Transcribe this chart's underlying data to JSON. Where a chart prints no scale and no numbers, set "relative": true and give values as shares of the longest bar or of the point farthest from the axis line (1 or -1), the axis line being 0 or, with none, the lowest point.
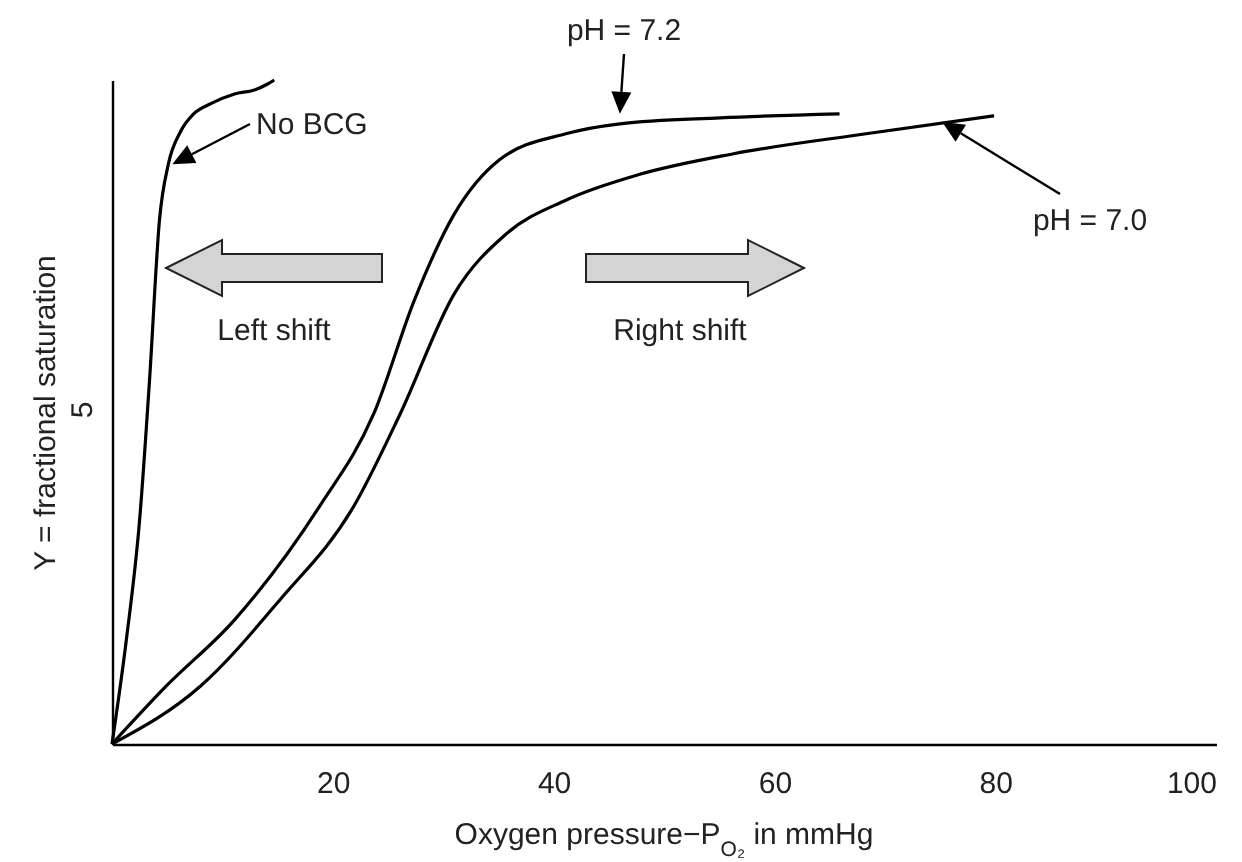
{
  "chart_data": {
    "type": "line",
    "relative": true,
    "xlabel": "Oxygen pressure−P$_{O₂}$ in mmHg",
    "ylabel": "Y = fractional saturation",
    "xlim": [
      0,
      100
    ],
    "xticks": [
      20,
      40,
      60,
      80,
      100
    ],
    "x": [
      0,
      1.3,
      2.5,
      3.4,
      4.3,
      5.1,
      6.2,
      7.4,
      8.9,
      11.1,
      12.9,
      14.1,
      14.7
    ],
    "series": [
      {
        "name": "No BCG",
        "color": "#000000",
        "values": [
          0,
          0.157,
          0.337,
          0.548,
          0.789,
          0.873,
          0.922,
          0.949,
          0.964,
          0.979,
          0.985,
          0.994,
          1.0
        ]
      },
      {
        "name": "pH = 7.2",
        "color": "#000000",
        "x": [
          0,
          4.9,
          11.1,
          18.8,
          23.7,
          27.4,
          31.0,
          35.1,
          41.1,
          46.0,
          55.1,
          65.9
        ],
        "values": [
          0,
          0.087,
          0.187,
          0.358,
          0.497,
          0.669,
          0.798,
          0.88,
          0.919,
          0.934,
          0.943,
          0.949
        ]
      },
      {
        "name": "pH = 7.0",
        "color": "#000000",
        "x": [
          0,
          8.0,
          15.2,
          21.9,
          26.1,
          31.0,
          35.7,
          41.1,
          47.8,
          56.3,
          68.3,
          79.9
        ],
        "values": [
          0,
          0.087,
          0.217,
          0.358,
          0.497,
          0.678,
          0.768,
          0.819,
          0.858,
          0.889,
          0.919,
          0.946
        ]
      }
    ],
    "annotations": [
      "5",
      "Left shift",
      "Right shift"
    ],
    "line_style": "solid",
    "marker": "none",
    "grid": false
  }
}
